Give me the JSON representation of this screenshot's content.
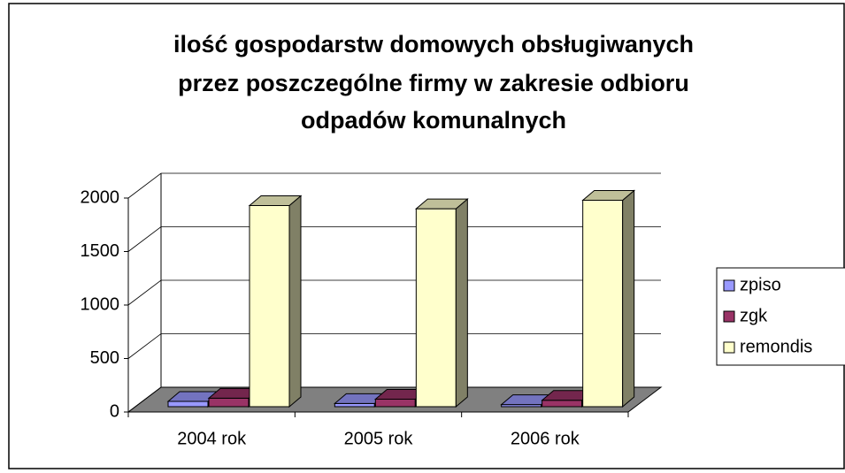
{
  "chart_data": {
    "type": "bar3d",
    "title": [
      "ilość gospodarstw domowych obsługiwanych",
      "przez poszczególne firmy w zakresie odbioru",
      "odpadów komunalnych"
    ],
    "categories": [
      "2004 rok",
      "2005 rok",
      "2006 rok"
    ],
    "series": [
      {
        "name": "zpiso",
        "color": "#9999ff",
        "values": [
          50,
          30,
          20
        ]
      },
      {
        "name": "zgk",
        "color": "#993366",
        "values": [
          80,
          70,
          60
        ]
      },
      {
        "name": "remondis",
        "color": "#ffffcc",
        "values": [
          1880,
          1850,
          1930
        ]
      }
    ],
    "ylim": [
      0,
      2000
    ],
    "yticks": [
      0,
      500,
      1000,
      1500,
      2000
    ],
    "grid": true,
    "legend": "right"
  }
}
